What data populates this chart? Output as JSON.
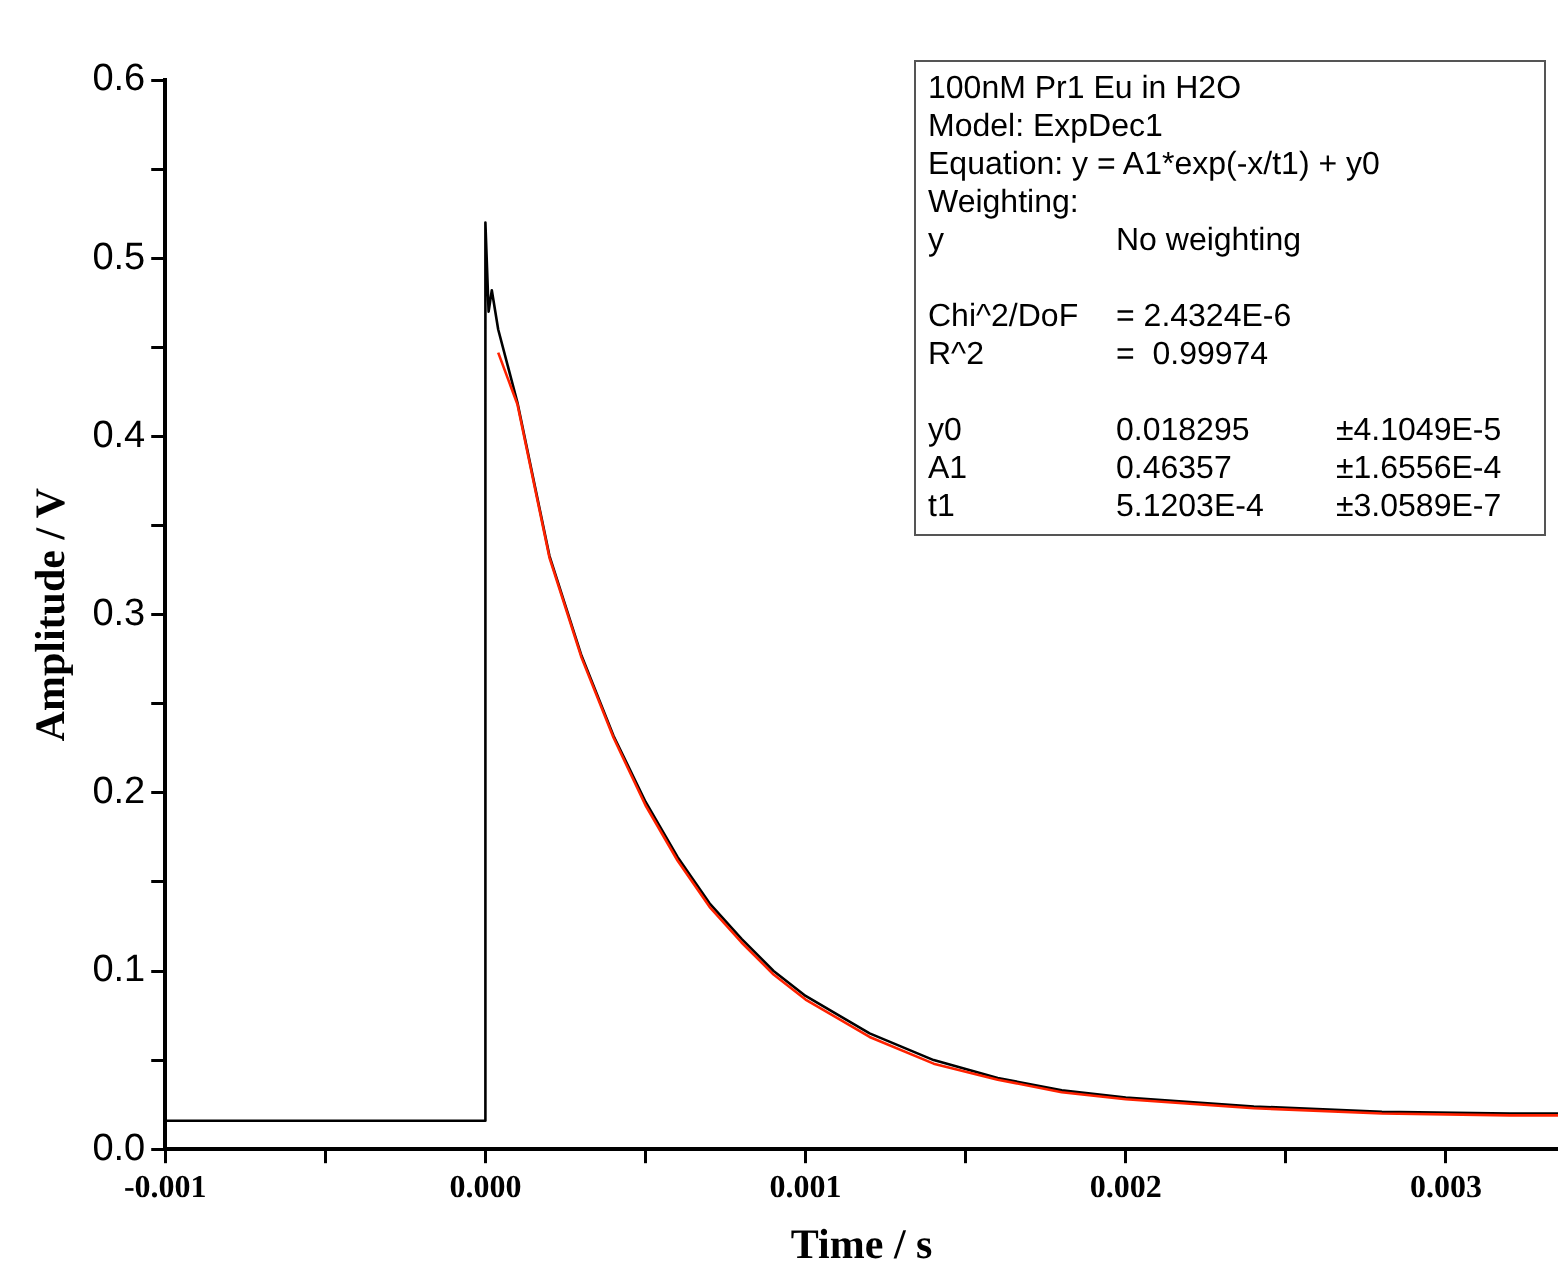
{
  "chart_data": {
    "type": "line",
    "xlabel": "Time / s",
    "ylabel": "Amplitude / V",
    "xlim": [
      -0.001,
      0.00335
    ],
    "ylim": [
      0,
      0.6
    ],
    "xticks": [
      {
        "value": -0.001,
        "label": "-0.001"
      },
      {
        "value": -0.0005,
        "label": null
      },
      {
        "value": 0,
        "label": "0.000"
      },
      {
        "value": 0.0005,
        "label": null
      },
      0.001,
      {
        "value": 0.0015,
        "label": null
      },
      0.002,
      {
        "value": 0.0025,
        "label": null
      },
      0.003
    ],
    "yticks": [
      {
        "value": 0,
        "label": "0.0"
      },
      {
        "value": 0.05,
        "label": null
      },
      0.1,
      {
        "value": 0.15,
        "label": null
      },
      0.2,
      {
        "value": 0.25,
        "label": null
      },
      0.3,
      {
        "value": 0.35,
        "label": null
      },
      0.4,
      {
        "value": 0.45,
        "label": null
      },
      0.5,
      {
        "value": 0.55,
        "label": null
      },
      0.6
    ],
    "marker": "none",
    "line_style": "solid",
    "legend": false,
    "annotations": [
      "100nM Pr1 Eu in H2O\nModel: ExpDec1\nEquation: y = A1*exp(-x/t1) + y0\nWeighting:\ny\tNo weighting\n\nChi^2/DoF\t= 2.4324E-6\nR^2\t=  0.99974\n\ny0\t0.018295\t±4.1049E-5\nA1\t0.46357\t±1.6556E-4\nt1\t5.1203E-4\t±3.0589E-7"
    ],
    "series": [
      {
        "type": "line",
        "color": "#000000",
        "x": [
          -0.001,
          -0.0005,
          -1e-05,
          0,
          0,
          1e-05,
          2e-05,
          4e-05,
          0.0001,
          0.0002,
          0.0003,
          0.0004,
          0.0005,
          0.0006,
          0.0007,
          0.0008,
          0.0009,
          0.001,
          0.0012,
          0.0014,
          0.0016,
          0.0018,
          0.002,
          0.0024,
          0.0028,
          0.0032,
          0.00335
        ],
        "values": [
          0.016,
          0.016,
          0.016,
          0.016,
          0.52,
          0.47,
          0.482,
          0.46,
          0.419,
          0.333,
          0.277,
          0.232,
          0.195,
          0.164,
          0.138,
          0.118,
          0.1,
          0.086,
          0.065,
          0.05,
          0.04,
          0.033,
          0.029,
          0.024,
          0.021,
          0.02,
          0.02
        ]
      },
      {
        "type": "line",
        "color": "#ff2200",
        "x": [
          4e-05,
          0.0001,
          0.0002,
          0.0003,
          0.0004,
          0.0005,
          0.0006,
          0.0007,
          0.0008,
          0.0009,
          0.001,
          0.0012,
          0.0014,
          0.0016,
          0.0018,
          0.002,
          0.0024,
          0.0028,
          0.0032,
          0.00335
        ],
        "values": [
          0.447,
          0.418,
          0.332,
          0.276,
          0.231,
          0.193,
          0.162,
          0.136,
          0.116,
          0.098,
          0.084,
          0.063,
          0.048,
          0.039,
          0.032,
          0.028,
          0.023,
          0.02,
          0.019,
          0.019
        ]
      }
    ]
  }
}
